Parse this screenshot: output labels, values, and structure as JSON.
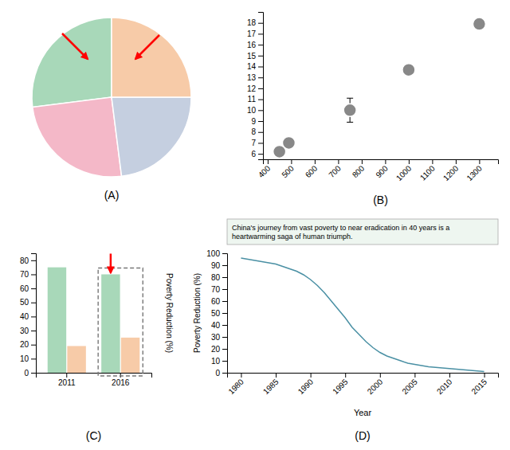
{
  "chart_data": [
    {
      "type": "pie",
      "title": "(A)",
      "values": [
        27,
        25,
        23,
        25
      ],
      "colors": [
        "#a8d8b9",
        "#f4b8c8",
        "#c5cfe0",
        "#f7cba8"
      ]
    },
    {
      "type": "scatter",
      "title": "(B)",
      "x": [
        450,
        490,
        750,
        1000,
        1300
      ],
      "values": [
        6.2,
        7.0,
        10.0,
        13.7,
        17.9
      ],
      "yerr": [
        0.0,
        0.0,
        1.1,
        0.4,
        0.0
      ],
      "color": "#888888",
      "xlim": [
        380,
        1380
      ],
      "ylim": [
        5.5,
        19
      ],
      "xticks": [
        400,
        500,
        600,
        700,
        800,
        900,
        1000,
        1100,
        1200,
        1300
      ],
      "yticks": [
        6,
        7,
        8,
        9,
        10,
        11,
        12,
        13,
        14,
        15,
        16,
        17,
        18
      ]
    },
    {
      "type": "bar",
      "title": "(C)",
      "ylabel": "Poverty Reduction (%)",
      "categories": [
        "2011",
        "2016"
      ],
      "series": [
        {
          "color": "#a8d8b9",
          "values": [
            75,
            70
          ]
        },
        {
          "color": "#f7cba8",
          "values": [
            19,
            25
          ]
        }
      ],
      "ylim": [
        0,
        85
      ],
      "yticks": [
        0,
        10,
        20,
        30,
        40,
        50,
        60,
        70,
        80
      ]
    },
    {
      "type": "line",
      "title": "(D)",
      "x": [
        1980,
        1981,
        1982,
        1983,
        1984,
        1985,
        1986,
        1987,
        1988,
        1989,
        1990,
        1991,
        1992,
        1993,
        1994,
        1995,
        1996,
        1997,
        1998,
        1999,
        2000,
        2001,
        2002,
        2003,
        2004,
        2005,
        2006,
        2007,
        2008,
        2009,
        2010,
        2011,
        2012,
        2013,
        2014,
        2015
      ],
      "values": [
        96,
        95,
        94,
        93,
        92,
        91,
        89,
        87,
        85,
        82,
        78,
        73,
        67,
        60,
        53,
        46,
        38,
        32,
        26,
        21,
        17,
        14,
        12,
        10,
        8,
        7,
        6,
        5,
        4.5,
        4,
        3.5,
        3,
        2.5,
        2,
        1.5,
        1
      ],
      "color": "#4a90a4",
      "xlabel": "Year",
      "ylabel": "Poverty Reduction (%)",
      "annotation": "China's journey from vast poverty to near eradication in 40 years is a\nheartwarming saga of human triumph.",
      "xlim": [
        1978,
        2017
      ],
      "ylim": [
        0,
        100
      ],
      "xticks": [
        1980,
        1985,
        1990,
        1995,
        2000,
        2005,
        2010,
        2015
      ],
      "yticks": [
        0,
        10,
        20,
        30,
        40,
        50,
        60,
        70,
        80,
        90,
        100
      ]
    }
  ]
}
